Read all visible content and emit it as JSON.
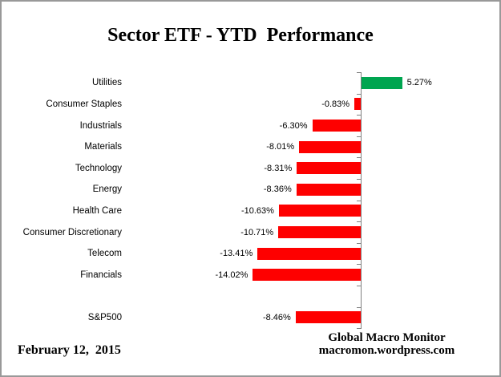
{
  "title": "Sector ETF - YTD  Performance",
  "chart_data": {
    "type": "bar",
    "orientation": "horizontal",
    "title": "Sector ETF - YTD  Performance",
    "categories": [
      "Utilities",
      "Consumer Staples",
      "Industrials",
      "Materials",
      "Technology",
      "Energy",
      "Health Care",
      "Consumer Discretionary",
      "Telecom",
      "Financials",
      "",
      "S&P500"
    ],
    "values": [
      5.27,
      -0.83,
      -6.3,
      -8.01,
      -8.31,
      -8.36,
      -10.63,
      -10.71,
      -13.41,
      -14.02,
      null,
      -8.46
    ],
    "value_labels": [
      "5.27%",
      "-0.83%",
      "-6.30%",
      "-8.01%",
      "-8.31%",
      "-8.36%",
      "-10.63%",
      "-10.71%",
      "-13.41%",
      "-14.02%",
      "",
      "-8.46%"
    ],
    "xlabel": "",
    "ylabel": "",
    "xlim": [
      -15.5,
      6.5
    ],
    "grid": false,
    "legend": false,
    "positive_color": "#00A550",
    "negative_color": "#FE0000",
    "axis_color": "#808080"
  },
  "footer": {
    "date": "February 12,  2015",
    "source_name": "Global Macro Monitor",
    "source_url": "macromon.wordpress.com"
  }
}
